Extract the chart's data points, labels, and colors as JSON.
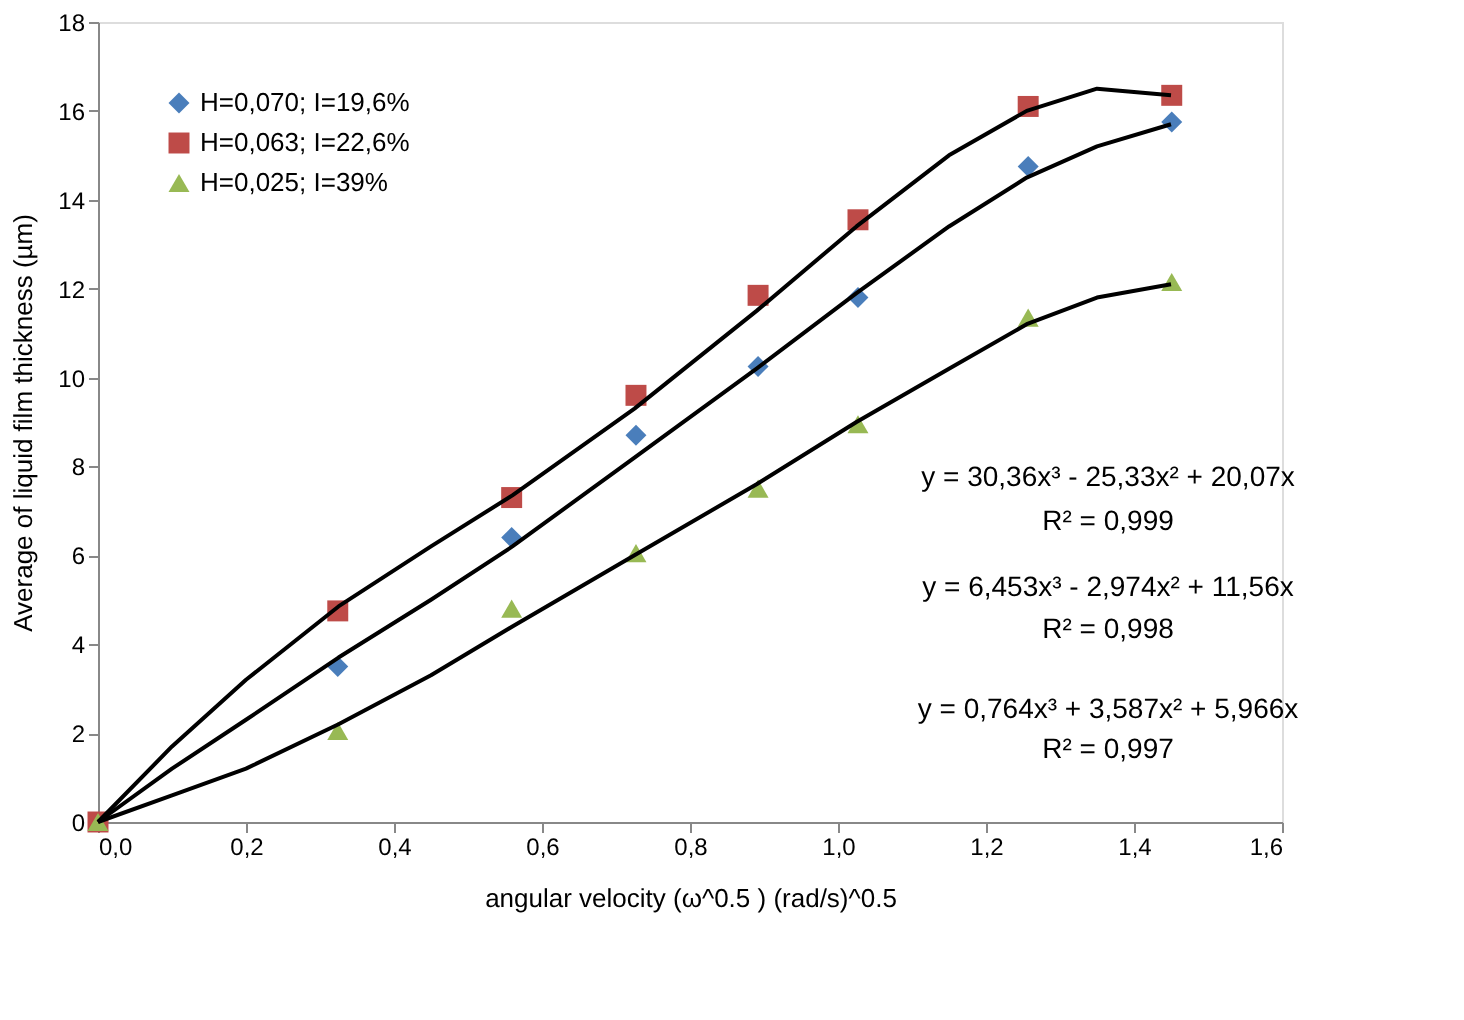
{
  "chart_data": {
    "type": "scatter",
    "xlabel": "angular velocity (ω^0.5 ) (rad/s)^0.5",
    "ylabel": "Average of liquid film thickness (µm)",
    "xlim": [
      0,
      1.6
    ],
    "ylim": [
      0,
      18
    ],
    "xticks": [
      {
        "value": 0,
        "label": "0,0"
      },
      {
        "value": 0.2,
        "label": "0,2"
      },
      {
        "value": 0.4,
        "label": "0,4"
      },
      {
        "value": 0.6,
        "label": "0,6"
      },
      {
        "value": 0.8,
        "label": "0,8"
      },
      {
        "value": 1.0,
        "label": "1,0"
      },
      {
        "value": 1.2,
        "label": "1,2"
      },
      {
        "value": 1.4,
        "label": "1,4"
      },
      {
        "value": 1.6,
        "label": "1,6"
      }
    ],
    "yticks": [
      0,
      2,
      4,
      6,
      8,
      10,
      12,
      14,
      16,
      18
    ],
    "grid": false,
    "legend": "top left",
    "x": [
      0,
      0.324,
      0.559,
      0.727,
      0.892,
      1.027,
      1.257,
      1.451
    ],
    "series": [
      {
        "name": "H=0,070; I=19,6%",
        "color": "#4a7ebb",
        "marker": "diamond",
        "values": [
          null,
          3.5,
          6.4,
          8.7,
          10.25,
          11.8,
          14.75,
          15.75
        ]
      },
      {
        "name": "H=0,063; I=22,6%",
        "color": "#be4b48",
        "marker": "square",
        "values": [
          0,
          4.75,
          7.3,
          9.6,
          11.85,
          13.55,
          16.1,
          16.35
        ]
      },
      {
        "name": "H=0,025; I=39%",
        "color": "#98b954",
        "marker": "triangle",
        "values": [
          0,
          2.05,
          4.8,
          6.05,
          7.5,
          8.95,
          11.35,
          12.15
        ]
      },
      {
        "type": "line",
        "color": "#000000",
        "x": [
          0,
          0.1,
          0.2,
          0.325,
          0.45,
          0.56,
          0.725,
          0.89,
          1.025,
          1.15,
          1.255,
          1.35,
          1.45
        ],
        "values": [
          0,
          1.2,
          2.3,
          3.7,
          5.0,
          6.2,
          8.2,
          10.2,
          11.9,
          13.4,
          14.5,
          15.2,
          15.7
        ]
      },
      {
        "type": "line",
        "color": "#000000",
        "x": [
          0,
          0.1,
          0.2,
          0.325,
          0.45,
          0.56,
          0.725,
          0.89,
          1.025,
          1.15,
          1.255,
          1.35,
          1.45
        ],
        "values": [
          0,
          1.7,
          3.2,
          4.85,
          6.2,
          7.35,
          9.3,
          11.5,
          13.4,
          15.0,
          16.0,
          16.5,
          16.35
        ]
      },
      {
        "type": "line",
        "color": "#000000",
        "x": [
          0,
          0.1,
          0.2,
          0.325,
          0.45,
          0.56,
          0.725,
          0.89,
          1.025,
          1.15,
          1.255,
          1.35,
          1.45
        ],
        "values": [
          0,
          0.6,
          1.2,
          2.2,
          3.3,
          4.4,
          6.0,
          7.6,
          9.0,
          10.2,
          11.2,
          11.8,
          12.1
        ]
      }
    ],
    "annotations": [
      "y = 30,36x³ - 25,33x² + 20,07x",
      "R² = 0,999",
      "y = 6,453x³ - 2,974x² + 11,56x",
      "R² = 0,998",
      "y = 0,764x³ + 3,587x² + 5,966x",
      "R² = 0,997"
    ]
  }
}
